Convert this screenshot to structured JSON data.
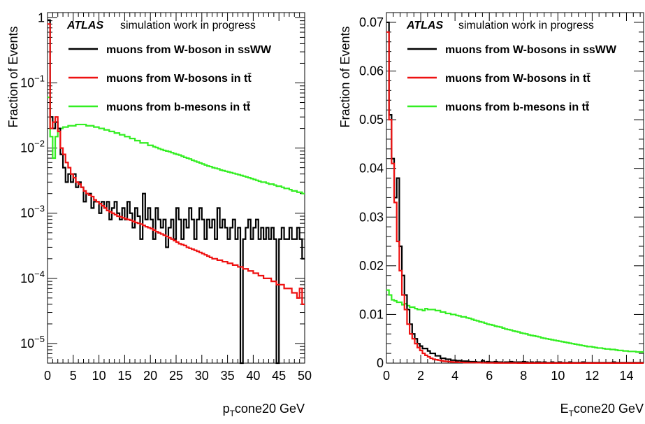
{
  "colors": {
    "ssww": "#000000",
    "tt_w": "#ee1111",
    "tt_b": "#33ee22"
  },
  "chart_data": [
    {
      "type": "line",
      "step": true,
      "log_y": true,
      "xlabel_main": "p",
      "xlabel_sub": "T",
      "xlabel_rest": "cone20 GeV",
      "ylabel": "Fraction of Events",
      "xlim": [
        0,
        50
      ],
      "ylim": [
        5e-06,
        1.2
      ],
      "x_ticks": [
        "0",
        "5",
        "10",
        "15",
        "20",
        "25",
        "30",
        "35",
        "40",
        "45",
        "50"
      ],
      "y_ticks": [
        {
          "base": "1",
          "exp": ""
        },
        {
          "base": "10",
          "exp": "−1"
        },
        {
          "base": "10",
          "exp": "−2"
        },
        {
          "base": "10",
          "exp": "−3"
        },
        {
          "base": "10",
          "exp": "−4"
        },
        {
          "base": "10",
          "exp": "−5"
        }
      ],
      "atlas_label": "ATLAS",
      "atlas_text": "simulation work in progress",
      "legend": [
        {
          "label": "muons from W-boson in ssWW",
          "key": "ssww"
        },
        {
          "label": "muons from W-bosons in tt̄",
          "key": "tt_w"
        },
        {
          "label": "muons from b-mesons in tt̄",
          "key": "tt_b"
        }
      ],
      "bin_width": 0.5,
      "series": [
        {
          "key": "ssww",
          "values": [
            0.92,
            0.03,
            0.02,
            0.025,
            0.02,
            0.008,
            0.005,
            0.003,
            0.004,
            0.003,
            0.004,
            0.0025,
            0.003,
            0.0025,
            0.0015,
            0.002,
            0.002,
            0.0012,
            0.0015,
            0.0015,
            0.001,
            0.0015,
            0.0012,
            0.0015,
            0.0008,
            0.0012,
            0.0015,
            0.001,
            0.0008,
            0.0012,
            0.0008,
            0.0015,
            0.001,
            0.0006,
            0.0012,
            0.0009,
            0.0004,
            0.002,
            0.0008,
            0.0012,
            0.0008,
            0.0004,
            0.0012,
            0.0008,
            0.0006,
            0.0008,
            0.0003,
            0.0006,
            0.0008,
            0.0004,
            0.0012,
            0.0008,
            0.0004,
            0.0008,
            0.0006,
            0.0012,
            0.0008,
            0.0004,
            0.0008,
            0.0012,
            0.0008,
            0.0004,
            0.0008,
            0.0006,
            0.0008,
            0.0004,
            0.0012,
            0.0006,
            0.0008,
            0.0006,
            0.0004,
            0.0006,
            0.0008,
            0.0004,
            0.0006,
            1e-07,
            0.0004,
            0.0006,
            0.0008,
            0.0004,
            0.0006,
            0.0008,
            0.0004,
            0.0006,
            0.0004,
            0.0006,
            0.0004,
            0.0006,
            0.0004,
            1e-07,
            0.0004,
            0.0006,
            0.0004,
            0.0004,
            0.0006,
            0.0004,
            0.0004,
            0.0006,
            0.0004,
            0.0002
          ]
        },
        {
          "key": "tt_w",
          "values": [
            0.8,
            0.02,
            0.025,
            0.03,
            0.018,
            0.01,
            0.008,
            0.006,
            0.005,
            0.004,
            0.0035,
            0.003,
            0.0028,
            0.0025,
            0.0022,
            0.002,
            0.0019,
            0.0018,
            0.0016,
            0.0015,
            0.0014,
            0.0013,
            0.0012,
            0.0011,
            0.00105,
            0.001,
            0.00095,
            0.0009,
            0.00088,
            0.00085,
            0.00082,
            0.0008,
            0.00078,
            0.00075,
            0.00072,
            0.0007,
            0.00068,
            0.00065,
            0.00062,
            0.0006,
            0.00058,
            0.00055,
            0.00052,
            0.0005,
            0.00048,
            0.00046,
            0.00044,
            0.00042,
            0.0004,
            0.00038,
            0.00036,
            0.00034,
            0.00033,
            0.00032,
            0.0003,
            0.00029,
            0.00028,
            0.00027,
            0.00026,
            0.00025,
            0.00024,
            0.00023,
            0.00022,
            0.00021,
            0.0002,
            0.0002,
            0.00019,
            0.00019,
            0.00018,
            0.00018,
            0.00017,
            0.00017,
            0.00016,
            0.00016,
            0.00015,
            0.00015,
            0.00014,
            0.00014,
            0.00013,
            0.00013,
            0.00012,
            0.00012,
            0.00011,
            0.00011,
            0.0001,
            0.0001,
            0.0001,
            9e-05,
            9e-05,
            8e-05,
            8e-05,
            8e-05,
            7e-05,
            7e-05,
            7e-05,
            6e-05,
            6e-05,
            5e-05,
            7e-05,
            4e-05
          ]
        },
        {
          "key": "tt_b",
          "values": [
            0.06,
            0.015,
            0.007,
            0.015,
            0.02,
            0.02,
            0.021,
            0.021,
            0.022,
            0.022,
            0.022,
            0.023,
            0.023,
            0.023,
            0.023,
            0.022,
            0.022,
            0.022,
            0.021,
            0.021,
            0.02,
            0.02,
            0.019,
            0.019,
            0.018,
            0.018,
            0.017,
            0.017,
            0.016,
            0.016,
            0.015,
            0.015,
            0.014,
            0.014,
            0.013,
            0.013,
            0.012,
            0.012,
            0.012,
            0.011,
            0.011,
            0.0105,
            0.0102,
            0.0098,
            0.0095,
            0.0092,
            0.009,
            0.0088,
            0.0085,
            0.0082,
            0.008,
            0.0078,
            0.0075,
            0.0072,
            0.007,
            0.0068,
            0.0065,
            0.0063,
            0.0061,
            0.0059,
            0.0057,
            0.0055,
            0.0053,
            0.0052,
            0.005,
            0.0049,
            0.0048,
            0.0046,
            0.0045,
            0.0044,
            0.0043,
            0.0042,
            0.0041,
            0.004,
            0.0039,
            0.0038,
            0.0037,
            0.0036,
            0.0035,
            0.0034,
            0.0033,
            0.0032,
            0.0031,
            0.003,
            0.003,
            0.0029,
            0.0028,
            0.0028,
            0.0027,
            0.0026,
            0.0026,
            0.0025,
            0.0024,
            0.0024,
            0.0023,
            0.0022,
            0.0022,
            0.0021,
            0.0021,
            0.002
          ]
        }
      ]
    },
    {
      "type": "line",
      "step": true,
      "log_y": false,
      "xlabel_main": "E",
      "xlabel_sub": "T",
      "xlabel_rest": "cone20 GeV",
      "ylabel": "Fraction of Events",
      "xlim": [
        0,
        15
      ],
      "ylim": [
        0,
        0.072
      ],
      "x_ticks": [
        "0",
        "2",
        "4",
        "6",
        "8",
        "10",
        "12",
        "14"
      ],
      "y_ticks": [
        "0",
        "0.01",
        "0.02",
        "0.03",
        "0.04",
        "0.05",
        "0.06",
        "0.07"
      ],
      "atlas_label": "ATLAS",
      "atlas_text": "simulation work in progress",
      "legend": [
        {
          "label": "muons from W-bosons in ssWW",
          "key": "ssww"
        },
        {
          "label": "muons from W-bosons in tt̄",
          "key": "tt_w"
        },
        {
          "label": "muons from b-mesons in tt̄",
          "key": "tt_b"
        }
      ],
      "bin_width": 0.15,
      "series": [
        {
          "key": "ssww",
          "values": [
            0.07,
            0.051,
            0.042,
            0.034,
            0.038,
            0.024,
            0.018,
            0.014,
            0.011,
            0.008,
            0.006,
            0.005,
            0.004,
            0.0035,
            0.003,
            0.003,
            0.0025,
            0.002,
            0.002,
            0.0015,
            0.0015,
            0.001,
            0.001,
            0.0008,
            0.0008,
            0.0006,
            0.0006,
            0.0005,
            0.0005,
            0.0004,
            0.0004,
            0.0004,
            0.0003,
            0.0003,
            0.0003,
            0.0002,
            0.0002,
            0.0005,
            0.0002,
            0.0003,
            0.0002,
            0.0002,
            0.0003,
            0.0002,
            0.0002,
            0.0001,
            0.0002,
            0.0002,
            0.0003,
            0.0002,
            0.0001,
            0.0002,
            0.0002,
            0.0003,
            0.0002,
            0.0001,
            0.0002,
            0.0001,
            0.0002,
            0.0002,
            0.0001,
            0.0002,
            0.0001,
            0.0001,
            0.0002,
            0.0001,
            0.0001,
            0.0002,
            0.0001,
            0.0001,
            0.0001,
            0.0002,
            0.0001,
            0.0001,
            0.0001,
            0.0001,
            0.0002,
            0.0001,
            0.0001,
            0.0001,
            0.0001,
            0.0001,
            0.0001,
            0.0001,
            0.0001,
            0.0001,
            0.0001,
            0.0001,
            0.0002,
            0.0001,
            0.0001,
            0.0001,
            0.0001,
            0.0001,
            0.0001,
            0.0001,
            0.0001,
            0.0001,
            0.0001,
            0.0001
          ]
        },
        {
          "key": "tt_w",
          "values": [
            0.068,
            0.05,
            0.041,
            0.033,
            0.025,
            0.019,
            0.014,
            0.011,
            0.008,
            0.006,
            0.005,
            0.004,
            0.0032,
            0.0026,
            0.002,
            0.0016,
            0.0013,
            0.001,
            0.0008,
            0.0007,
            0.0006,
            0.0005,
            0.0004,
            0.00035,
            0.0003,
            0.00025,
            0.0002,
            0.0002,
            0.00015,
            0.00015,
            0.0001,
            0.0001,
            0.0001,
            0.0001,
            0.0001,
            8e-05,
            8e-05,
            6e-05,
            6e-05,
            5e-05,
            5e-05,
            5e-05,
            4e-05,
            4e-05,
            4e-05,
            3e-05,
            3e-05,
            3e-05,
            3e-05,
            3e-05,
            3e-05,
            2e-05,
            2e-05,
            2e-05,
            2e-05,
            2e-05,
            2e-05,
            2e-05,
            2e-05,
            2e-05,
            2e-05,
            2e-05,
            2e-05,
            2e-05,
            2e-05,
            2e-05,
            2e-05,
            2e-05,
            2e-05,
            2e-05,
            2e-05,
            2e-05,
            2e-05,
            2e-05,
            2e-05,
            2e-05,
            2e-05,
            2e-05,
            2e-05,
            2e-05,
            2e-05,
            2e-05,
            2e-05,
            2e-05,
            2e-05,
            2e-05,
            2e-05,
            2e-05,
            2e-05,
            2e-05,
            2e-05,
            2e-05,
            2e-05,
            2e-05,
            2e-05,
            2e-05,
            2e-05,
            2e-05,
            2e-05,
            2e-05
          ]
        },
        {
          "key": "tt_b",
          "values": [
            0.015,
            0.014,
            0.013,
            0.0128,
            0.0125,
            0.0125,
            0.012,
            0.0122,
            0.0118,
            0.0115,
            0.0115,
            0.0112,
            0.011,
            0.011,
            0.0108,
            0.0112,
            0.011,
            0.011,
            0.011,
            0.0108,
            0.0108,
            0.0105,
            0.0105,
            0.0102,
            0.0102,
            0.01,
            0.01,
            0.0098,
            0.0097,
            0.0095,
            0.0095,
            0.0093,
            0.0092,
            0.009,
            0.0088,
            0.0087,
            0.0085,
            0.0084,
            0.0082,
            0.008,
            0.0079,
            0.0078,
            0.0076,
            0.0075,
            0.0074,
            0.0072,
            0.007,
            0.0069,
            0.0068,
            0.0066,
            0.0065,
            0.0064,
            0.0062,
            0.0061,
            0.006,
            0.0058,
            0.0057,
            0.0056,
            0.0055,
            0.0054,
            0.0052,
            0.0051,
            0.005,
            0.0049,
            0.0048,
            0.0047,
            0.0046,
            0.0045,
            0.0044,
            0.0043,
            0.0042,
            0.0041,
            0.004,
            0.0039,
            0.0038,
            0.0037,
            0.0036,
            0.0035,
            0.0034,
            0.0034,
            0.0033,
            0.0032,
            0.0031,
            0.0031,
            0.003,
            0.0029,
            0.0029,
            0.0028,
            0.0028,
            0.0027,
            0.0026,
            0.0026,
            0.0025,
            0.0025,
            0.0024,
            0.0024,
            0.0024,
            0.0023,
            0.0023,
            0.0023
          ]
        }
      ]
    }
  ]
}
